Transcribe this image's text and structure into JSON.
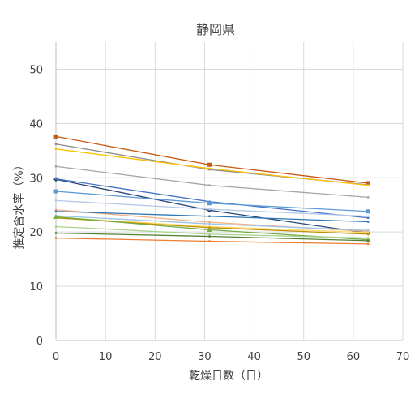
{
  "chart_data": {
    "type": "line",
    "title": "静岡県",
    "xlabel": "乾燥日数（日）",
    "ylabel": "推定含水率（%）",
    "xlim": [
      0,
      70
    ],
    "ylim": [
      0,
      55
    ],
    "xticks": [
      0,
      10,
      20,
      30,
      40,
      50,
      60,
      70
    ],
    "yticks": [
      0,
      10,
      20,
      30,
      40,
      50
    ],
    "x": [
      0,
      31,
      63
    ],
    "grid": true,
    "legend": "none",
    "series": [
      {
        "color": "#c55a11",
        "marker": "square",
        "values": [
          37.6,
          32.4,
          29.0
        ]
      },
      {
        "color": "#8c8c8c",
        "marker": "none",
        "values": [
          36.2,
          31.5,
          28.7
        ]
      },
      {
        "color": "#ffc000",
        "marker": "none",
        "values": [
          35.3,
          31.7,
          28.6
        ]
      },
      {
        "color": "#a5a5a5",
        "marker": "none",
        "values": [
          32.1,
          28.6,
          26.4
        ]
      },
      {
        "color": "#264478",
        "marker": "diamond",
        "values": [
          29.7,
          24.0,
          19.8
        ]
      },
      {
        "color": "#4472c4",
        "marker": "none",
        "values": [
          29.8,
          25.6,
          22.6
        ]
      },
      {
        "color": "#5b9bd5",
        "marker": "square",
        "values": [
          27.5,
          25.3,
          23.8
        ]
      },
      {
        "color": "#b4c7e7",
        "marker": "none",
        "values": [
          25.8,
          24.2,
          22.9
        ]
      },
      {
        "color": "#f4b183",
        "marker": "none",
        "values": [
          24.1,
          21.8,
          20.1
        ]
      },
      {
        "color": "#2e75b6",
        "marker": "none",
        "values": [
          23.8,
          22.9,
          21.9
        ]
      },
      {
        "color": "#9dc3e6",
        "marker": "none",
        "values": [
          23.0,
          21.5,
          20.3
        ]
      },
      {
        "color": "#ffd966",
        "marker": "none",
        "values": [
          22.7,
          21.0,
          19.9
        ]
      },
      {
        "color": "#bf9000",
        "marker": "none",
        "values": [
          22.6,
          20.8,
          19.6
        ]
      },
      {
        "color": "#70ad47",
        "marker": "triangle",
        "values": [
          22.8,
          20.4,
          18.6
        ]
      },
      {
        "color": "#a9d18e",
        "marker": "none",
        "values": [
          21.0,
          19.6,
          18.9
        ]
      },
      {
        "color": "#548235",
        "marker": "none",
        "values": [
          19.8,
          19.2,
          18.4
        ]
      },
      {
        "color": "#ed7d31",
        "marker": "none",
        "values": [
          18.9,
          18.3,
          17.8
        ]
      }
    ]
  }
}
